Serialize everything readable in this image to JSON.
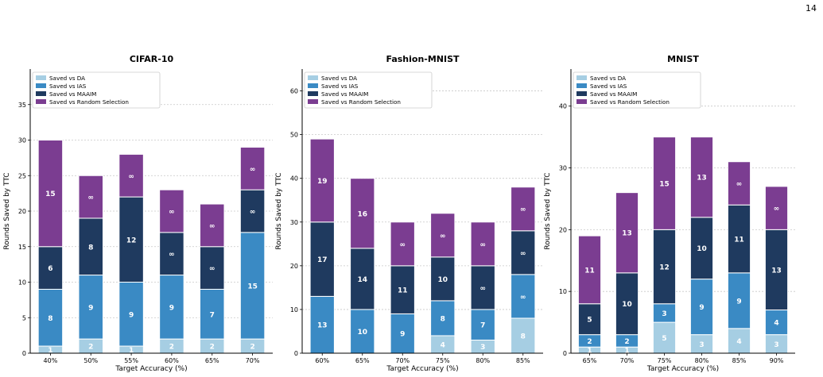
{
  "page_number": "14",
  "colors": {
    "Saved vs DA": "#a6cee3",
    "Saved vs IAS": "#3a8ac4",
    "Saved vs MAAIM": "#1f3a5f",
    "Saved vs Random Selection": "#7b3d91"
  },
  "chart_data": [
    {
      "type": "bar",
      "stacked": true,
      "title": "CIFAR-10",
      "xlabel": "Target Accuracy (%)",
      "ylabel": "Rounds Saved by TTC",
      "categories": [
        "40%",
        "50%",
        "55%",
        "60%",
        "65%",
        "70%"
      ],
      "ylim": [
        0,
        40
      ],
      "yticks": [
        0,
        5,
        10,
        15,
        20,
        25,
        30,
        35
      ],
      "grid": "y-dotted",
      "legend": "top-left",
      "series": [
        {
          "name": "Saved vs DA",
          "values": [
            1,
            2,
            1,
            2,
            2,
            2
          ],
          "labels": [
            "1",
            "2",
            "1",
            "2",
            "2",
            "2"
          ]
        },
        {
          "name": "Saved vs IAS",
          "values": [
            8,
            9,
            9,
            9,
            7,
            15
          ],
          "labels": [
            "8",
            "9",
            "9",
            "9",
            "7",
            "15"
          ]
        },
        {
          "name": "Saved vs MAAIM",
          "values": [
            6,
            8,
            12,
            6,
            6,
            6
          ],
          "labels": [
            "6",
            "8",
            "12",
            "∞",
            "∞",
            "∞"
          ]
        },
        {
          "name": "Saved vs Random Selection",
          "values": [
            15,
            6,
            6,
            6,
            6,
            6
          ],
          "labels": [
            "15",
            "∞",
            "∞",
            "∞",
            "∞",
            "∞"
          ]
        }
      ]
    },
    {
      "type": "bar",
      "stacked": true,
      "title": "Fashion-MNIST",
      "xlabel": "Target Accuracy (%)",
      "ylabel": "Rounds Saved by TTC",
      "categories": [
        "60%",
        "65%",
        "70%",
        "75%",
        "80%",
        "85%"
      ],
      "ylim": [
        0,
        65
      ],
      "yticks": [
        0,
        10,
        20,
        30,
        40,
        50,
        60
      ],
      "grid": "y-dotted",
      "legend": "top-left",
      "series": [
        {
          "name": "Saved vs DA",
          "values": [
            0,
            0,
            0,
            4,
            3,
            8
          ],
          "labels": [
            "",
            "",
            "",
            "4",
            "3",
            "8"
          ]
        },
        {
          "name": "Saved vs IAS",
          "values": [
            13,
            10,
            9,
            8,
            7,
            10
          ],
          "labels": [
            "13",
            "10",
            "9",
            "8",
            "7",
            "∞"
          ]
        },
        {
          "name": "Saved vs MAAIM",
          "values": [
            17,
            14,
            11,
            10,
            10,
            10
          ],
          "labels": [
            "17",
            "14",
            "11",
            "10",
            "∞",
            "∞"
          ]
        },
        {
          "name": "Saved vs Random Selection",
          "values": [
            19,
            16,
            10,
            10,
            10,
            10
          ],
          "labels": [
            "19",
            "16",
            "∞",
            "∞",
            "∞",
            "∞"
          ]
        }
      ]
    },
    {
      "type": "bar",
      "stacked": true,
      "title": "MNIST",
      "xlabel": "Target Accuracy (%)",
      "ylabel": "Rounds Saved by TTC",
      "categories": [
        "65%",
        "70%",
        "75%",
        "80%",
        "85%",
        "90%"
      ],
      "ylim": [
        0,
        46
      ],
      "yticks": [
        0,
        10,
        20,
        30,
        40
      ],
      "grid": "y-dotted",
      "legend": "top-left",
      "series": [
        {
          "name": "Saved vs DA",
          "values": [
            1,
            1,
            5,
            3,
            4,
            3
          ],
          "labels": [
            "1",
            "1",
            "5",
            "3",
            "4",
            "3"
          ]
        },
        {
          "name": "Saved vs IAS",
          "values": [
            2,
            2,
            3,
            9,
            9,
            4
          ],
          "labels": [
            "2",
            "2",
            "3",
            "9",
            "9",
            "4"
          ]
        },
        {
          "name": "Saved vs MAAIM",
          "values": [
            5,
            10,
            12,
            10,
            11,
            13
          ],
          "labels": [
            "5",
            "10",
            "12",
            "10",
            "11",
            "13"
          ]
        },
        {
          "name": "Saved vs Random Selection",
          "values": [
            11,
            13,
            15,
            13,
            7,
            7
          ],
          "labels": [
            "11",
            "13",
            "15",
            "13",
            "∞",
            "∞"
          ]
        }
      ]
    }
  ]
}
